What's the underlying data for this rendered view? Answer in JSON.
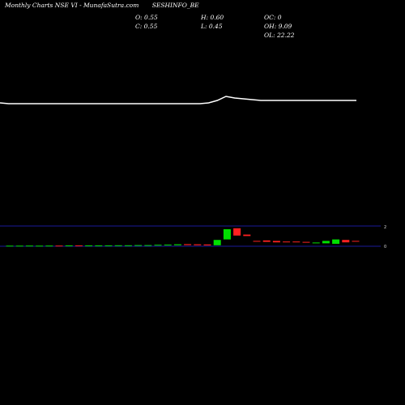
{
  "header": {
    "title": "Monthly Charts NSE VI  -  MunafaSutra.com",
    "symbol": "SESHINFO_BE"
  },
  "ohlc": {
    "open": "O: 0.55",
    "high": "H: 0.60",
    "oc": "OC: 0",
    "close": "C: 0.55",
    "low": "L: 0.45",
    "oh": "OH: 9.09",
    "ol": "OL: 22.22"
  },
  "colors": {
    "background": "#000000",
    "price_line": "#ffffff",
    "up": "#00e000",
    "down": "#ff2020",
    "axis": "#1a1a9a"
  },
  "chart_data": {
    "type": "line",
    "title": "",
    "xlabel": "",
    "ylabel": "",
    "grid": false,
    "price_line": [
      0.52,
      0.51,
      0.51,
      0.51,
      0.51,
      0.51,
      0.51,
      0.51,
      0.51,
      0.51,
      0.51,
      0.51,
      0.51,
      0.51,
      0.51,
      0.51,
      0.51,
      0.51,
      0.51,
      0.51,
      0.51,
      0.51,
      0.51,
      0.51,
      0.52,
      0.55,
      0.6,
      0.58,
      0.57,
      0.56,
      0.55,
      0.55,
      0.55,
      0.55,
      0.55,
      0.55,
      0.55,
      0.55,
      0.55,
      0.55,
      0.55,
      0.55
    ],
    "candles_panel": {
      "yticks": [
        "2",
        "0"
      ],
      "ylim": [
        0,
        2
      ],
      "candles": [
        {
          "o": 0.04,
          "c": 0.06
        },
        {
          "o": 0.04,
          "c": 0.06
        },
        {
          "o": 0.05,
          "c": 0.07
        },
        {
          "o": 0.05,
          "c": 0.06
        },
        {
          "o": 0.05,
          "c": 0.07
        },
        {
          "o": 0.07,
          "c": 0.05
        },
        {
          "o": 0.06,
          "c": 0.08
        },
        {
          "o": 0.08,
          "c": 0.06
        },
        {
          "o": 0.06,
          "c": 0.08
        },
        {
          "o": 0.06,
          "c": 0.08
        },
        {
          "o": 0.06,
          "c": 0.09
        },
        {
          "o": 0.07,
          "c": 0.1
        },
        {
          "o": 0.07,
          "c": 0.1
        },
        {
          "o": 0.08,
          "c": 0.12
        },
        {
          "o": 0.08,
          "c": 0.12
        },
        {
          "o": 0.08,
          "c": 0.15
        },
        {
          "o": 0.09,
          "c": 0.17
        },
        {
          "o": 0.1,
          "c": 0.2
        },
        {
          "o": 0.22,
          "c": 0.12
        },
        {
          "o": 0.2,
          "c": 0.1
        },
        {
          "o": 0.18,
          "c": 0.08
        },
        {
          "o": 0.1,
          "c": 0.65
        },
        {
          "o": 0.7,
          "c": 1.75
        },
        {
          "o": 1.85,
          "c": 1.1
        },
        {
          "o": 1.2,
          "c": 1.05
        },
        {
          "o": 0.55,
          "c": 0.5
        },
        {
          "o": 0.6,
          "c": 0.45
        },
        {
          "o": 0.55,
          "c": 0.4
        },
        {
          "o": 0.48,
          "c": 0.4
        },
        {
          "o": 0.48,
          "c": 0.42
        },
        {
          "o": 0.45,
          "c": 0.38
        },
        {
          "o": 0.3,
          "c": 0.38
        },
        {
          "o": 0.3,
          "c": 0.55
        },
        {
          "o": 0.25,
          "c": 0.7
        },
        {
          "o": 0.65,
          "c": 0.4
        },
        {
          "o": 0.55,
          "c": 0.5
        }
      ]
    }
  }
}
